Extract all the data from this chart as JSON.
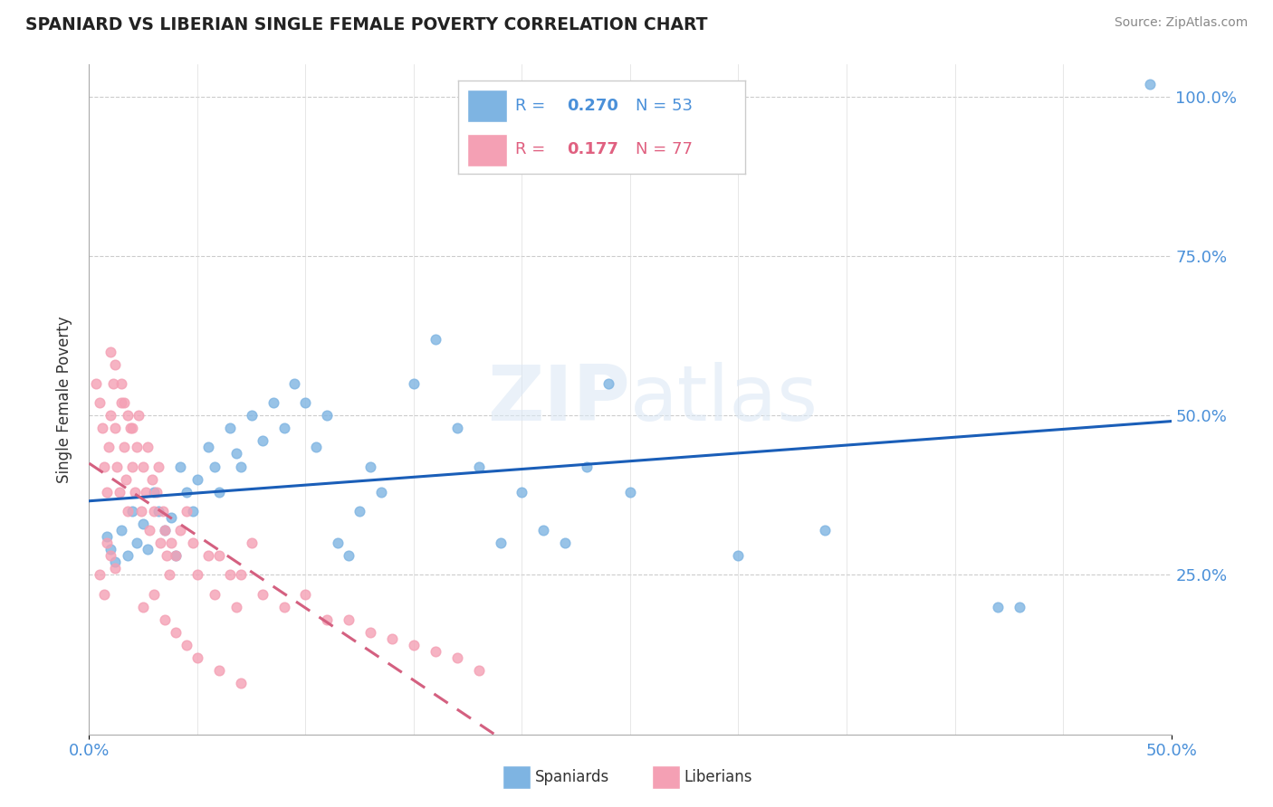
{
  "title": "SPANIARD VS LIBERIAN SINGLE FEMALE POVERTY CORRELATION CHART",
  "source": "Source: ZipAtlas.com",
  "xlabel": "",
  "ylabel": "Single Female Poverty",
  "xlim": [
    0.0,
    0.5
  ],
  "ylim": [
    0.0,
    1.05
  ],
  "xtick_labels": [
    "0.0%",
    "50.0%"
  ],
  "ytick_labels": [
    "25.0%",
    "50.0%",
    "75.0%",
    "100.0%"
  ],
  "ytick_values": [
    0.25,
    0.5,
    0.75,
    1.0
  ],
  "spaniard_R": "0.270",
  "spaniard_N": "53",
  "liberian_R": "0.177",
  "liberian_N": "77",
  "spaniard_color": "#7EB4E2",
  "liberian_color": "#F4A0B4",
  "trendline_spaniard_color": "#1a5eb8",
  "trendline_liberian_color": "#d46080",
  "spaniard_points": [
    [
      0.008,
      0.31
    ],
    [
      0.01,
      0.29
    ],
    [
      0.012,
      0.27
    ],
    [
      0.015,
      0.32
    ],
    [
      0.018,
      0.28
    ],
    [
      0.02,
      0.35
    ],
    [
      0.022,
      0.3
    ],
    [
      0.025,
      0.33
    ],
    [
      0.027,
      0.29
    ],
    [
      0.03,
      0.38
    ],
    [
      0.032,
      0.35
    ],
    [
      0.035,
      0.32
    ],
    [
      0.038,
      0.34
    ],
    [
      0.04,
      0.28
    ],
    [
      0.042,
      0.42
    ],
    [
      0.045,
      0.38
    ],
    [
      0.048,
      0.35
    ],
    [
      0.05,
      0.4
    ],
    [
      0.055,
      0.45
    ],
    [
      0.058,
      0.42
    ],
    [
      0.06,
      0.38
    ],
    [
      0.065,
      0.48
    ],
    [
      0.068,
      0.44
    ],
    [
      0.07,
      0.42
    ],
    [
      0.075,
      0.5
    ],
    [
      0.08,
      0.46
    ],
    [
      0.085,
      0.52
    ],
    [
      0.09,
      0.48
    ],
    [
      0.095,
      0.55
    ],
    [
      0.1,
      0.52
    ],
    [
      0.105,
      0.45
    ],
    [
      0.11,
      0.5
    ],
    [
      0.115,
      0.3
    ],
    [
      0.12,
      0.28
    ],
    [
      0.125,
      0.35
    ],
    [
      0.13,
      0.42
    ],
    [
      0.135,
      0.38
    ],
    [
      0.15,
      0.55
    ],
    [
      0.16,
      0.62
    ],
    [
      0.17,
      0.48
    ],
    [
      0.18,
      0.42
    ],
    [
      0.19,
      0.3
    ],
    [
      0.2,
      0.38
    ],
    [
      0.21,
      0.32
    ],
    [
      0.22,
      0.3
    ],
    [
      0.23,
      0.42
    ],
    [
      0.24,
      0.55
    ],
    [
      0.25,
      0.38
    ],
    [
      0.3,
      0.28
    ],
    [
      0.34,
      0.32
    ],
    [
      0.42,
      0.2
    ],
    [
      0.43,
      0.2
    ],
    [
      0.49,
      1.02
    ]
  ],
  "liberian_points": [
    [
      0.003,
      0.55
    ],
    [
      0.005,
      0.52
    ],
    [
      0.006,
      0.48
    ],
    [
      0.007,
      0.42
    ],
    [
      0.008,
      0.38
    ],
    [
      0.009,
      0.45
    ],
    [
      0.01,
      0.5
    ],
    [
      0.011,
      0.55
    ],
    [
      0.012,
      0.48
    ],
    [
      0.013,
      0.42
    ],
    [
      0.014,
      0.38
    ],
    [
      0.015,
      0.52
    ],
    [
      0.016,
      0.45
    ],
    [
      0.017,
      0.4
    ],
    [
      0.018,
      0.35
    ],
    [
      0.019,
      0.48
    ],
    [
      0.02,
      0.42
    ],
    [
      0.021,
      0.38
    ],
    [
      0.022,
      0.45
    ],
    [
      0.023,
      0.5
    ],
    [
      0.024,
      0.35
    ],
    [
      0.025,
      0.42
    ],
    [
      0.026,
      0.38
    ],
    [
      0.027,
      0.45
    ],
    [
      0.028,
      0.32
    ],
    [
      0.029,
      0.4
    ],
    [
      0.03,
      0.35
    ],
    [
      0.031,
      0.38
    ],
    [
      0.032,
      0.42
    ],
    [
      0.033,
      0.3
    ],
    [
      0.034,
      0.35
    ],
    [
      0.035,
      0.32
    ],
    [
      0.036,
      0.28
    ],
    [
      0.037,
      0.25
    ],
    [
      0.038,
      0.3
    ],
    [
      0.04,
      0.28
    ],
    [
      0.042,
      0.32
    ],
    [
      0.045,
      0.35
    ],
    [
      0.048,
      0.3
    ],
    [
      0.05,
      0.25
    ],
    [
      0.055,
      0.28
    ],
    [
      0.058,
      0.22
    ],
    [
      0.06,
      0.28
    ],
    [
      0.065,
      0.25
    ],
    [
      0.068,
      0.2
    ],
    [
      0.07,
      0.25
    ],
    [
      0.075,
      0.3
    ],
    [
      0.08,
      0.22
    ],
    [
      0.09,
      0.2
    ],
    [
      0.1,
      0.22
    ],
    [
      0.11,
      0.18
    ],
    [
      0.12,
      0.18
    ],
    [
      0.13,
      0.16
    ],
    [
      0.14,
      0.15
    ],
    [
      0.15,
      0.14
    ],
    [
      0.16,
      0.13
    ],
    [
      0.17,
      0.12
    ],
    [
      0.18,
      0.1
    ],
    [
      0.01,
      0.6
    ],
    [
      0.012,
      0.58
    ],
    [
      0.015,
      0.55
    ],
    [
      0.016,
      0.52
    ],
    [
      0.018,
      0.5
    ],
    [
      0.02,
      0.48
    ],
    [
      0.008,
      0.3
    ],
    [
      0.01,
      0.28
    ],
    [
      0.012,
      0.26
    ],
    [
      0.005,
      0.25
    ],
    [
      0.007,
      0.22
    ],
    [
      0.025,
      0.2
    ],
    [
      0.03,
      0.22
    ],
    [
      0.035,
      0.18
    ],
    [
      0.04,
      0.16
    ],
    [
      0.045,
      0.14
    ],
    [
      0.05,
      0.12
    ],
    [
      0.06,
      0.1
    ],
    [
      0.07,
      0.08
    ]
  ]
}
